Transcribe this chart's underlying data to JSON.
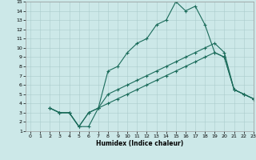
{
  "xlabel": "Humidex (Indice chaleur)",
  "xlim": [
    -0.5,
    23
  ],
  "ylim": [
    1,
    15
  ],
  "xticks": [
    0,
    1,
    2,
    3,
    4,
    5,
    6,
    7,
    8,
    9,
    10,
    11,
    12,
    13,
    14,
    15,
    16,
    17,
    18,
    19,
    20,
    21,
    22,
    23
  ],
  "yticks": [
    1,
    2,
    3,
    4,
    5,
    6,
    7,
    8,
    9,
    10,
    11,
    12,
    13,
    14,
    15
  ],
  "background_color": "#cce8e8",
  "grid_color": "#aacccc",
  "line_color": "#1a6b5a",
  "line1_x": [
    2,
    3,
    4,
    5,
    6,
    7,
    8,
    9,
    10,
    11,
    12,
    13,
    14,
    15,
    16,
    17,
    18,
    19,
    20,
    21,
    22,
    23
  ],
  "line1_y": [
    3.5,
    3.0,
    3.0,
    1.5,
    1.5,
    3.5,
    7.5,
    8.0,
    9.5,
    10.5,
    11.0,
    12.5,
    13.0,
    15.0,
    14.0,
    14.5,
    12.5,
    9.5,
    9.0,
    5.5,
    5.0,
    4.5
  ],
  "line2_x": [
    2,
    3,
    4,
    5,
    6,
    7,
    8,
    9,
    10,
    11,
    12,
    13,
    14,
    15,
    16,
    17,
    18,
    19,
    20,
    21,
    22,
    23
  ],
  "line2_y": [
    3.5,
    3.0,
    3.0,
    1.5,
    3.0,
    3.5,
    5.0,
    5.5,
    6.0,
    6.5,
    7.0,
    7.5,
    8.0,
    8.5,
    9.0,
    9.5,
    10.0,
    10.5,
    9.5,
    5.5,
    5.0,
    4.5
  ],
  "line3_x": [
    2,
    3,
    4,
    5,
    6,
    7,
    8,
    9,
    10,
    11,
    12,
    13,
    14,
    15,
    16,
    17,
    18,
    19,
    20,
    21,
    22,
    23
  ],
  "line3_y": [
    3.5,
    3.0,
    3.0,
    1.5,
    3.0,
    3.5,
    4.0,
    4.5,
    5.0,
    5.5,
    6.0,
    6.5,
    7.0,
    7.5,
    8.0,
    8.5,
    9.0,
    9.5,
    9.0,
    5.5,
    5.0,
    4.5
  ]
}
